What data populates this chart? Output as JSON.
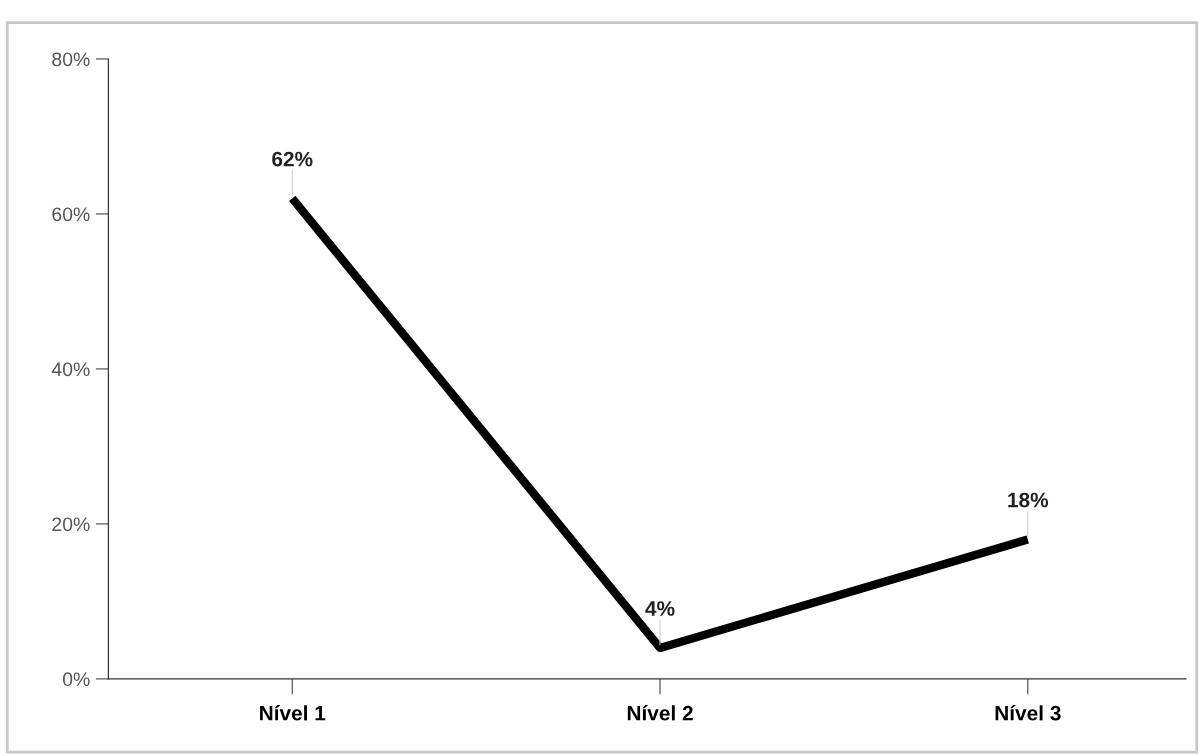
{
  "chart_data": {
    "type": "line",
    "categories": [
      "Nível 1",
      "Nível 2",
      "Nível 3"
    ],
    "series": [
      {
        "color": "#000000",
        "values": [
          62,
          4,
          18
        ],
        "value_labels": [
          "62%",
          "4%",
          "18%"
        ]
      }
    ],
    "ylim": [
      0,
      80
    ],
    "yticks": [
      {
        "value": 0,
        "label": "0%"
      },
      {
        "value": 20,
        "label": "20%"
      },
      {
        "value": 40,
        "label": "40%"
      },
      {
        "value": 60,
        "label": "60%"
      },
      {
        "value": 80,
        "label": "80%"
      }
    ],
    "grid": false,
    "legend": false,
    "marker": "none",
    "line_style": "solid"
  }
}
